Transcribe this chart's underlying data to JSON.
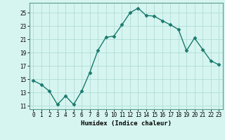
{
  "x": [
    0,
    1,
    2,
    3,
    4,
    5,
    6,
    7,
    8,
    9,
    10,
    11,
    12,
    13,
    14,
    15,
    16,
    17,
    18,
    19,
    20,
    21,
    22,
    23
  ],
  "y": [
    14.8,
    14.2,
    13.2,
    11.2,
    12.5,
    11.2,
    13.2,
    16.0,
    19.3,
    21.3,
    21.5,
    23.2,
    25.0,
    25.7,
    24.6,
    24.5,
    23.8,
    23.2,
    22.5,
    19.3,
    21.2,
    19.5,
    17.8,
    17.2
  ],
  "xlabel": "Humidex (Indice chaleur)",
  "line_color": "#1a7a6e",
  "marker": "D",
  "marker_size": 2.5,
  "bg_color": "#d6f5f0",
  "grid_color": "#b0ddd8",
  "ylim": [
    10.5,
    26.5
  ],
  "yticks": [
    11,
    13,
    15,
    17,
    19,
    21,
    23,
    25
  ],
  "xticks": [
    0,
    1,
    2,
    3,
    4,
    5,
    6,
    7,
    8,
    9,
    10,
    11,
    12,
    13,
    14,
    15,
    16,
    17,
    18,
    19,
    20,
    21,
    22,
    23
  ],
  "tick_fontsize": 5.5,
  "xlabel_fontsize": 6.5
}
